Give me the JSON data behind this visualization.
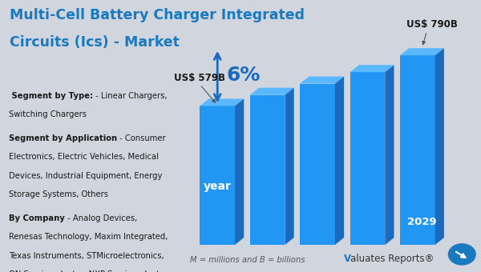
{
  "title_line1": "Multi-Cell Battery Charger Integrated",
  "title_line2": "Circuits (Ics) - Market",
  "title_color": "#1a7abf",
  "bg_color": "#d0d5de",
  "bar_values": [
    579,
    625,
    672,
    720,
    790
  ],
  "bar_color_front": "#2196F3",
  "bar_color_dark": "#1a6bbf",
  "bar_color_top": "#5bb8ff",
  "start_label": "US$ 579B",
  "end_label": "US$ 790B",
  "growth_label": "6%",
  "year_label": "year",
  "end_year": "2029",
  "footnote": "M = millions and B = billions",
  "brand_v": "V",
  "brand_text": "aluates Reports",
  "brand_symbol": "®",
  "arrow_color": "#1a6bbf",
  "left_segments": [
    {
      "bold": " Segment by Type:",
      "normal": " - Linear Chargers,\nSwitching Chargers"
    },
    {
      "bold": "Segment by Application",
      "normal": " - Consumer\nElectronics, Electric Vehicles, Medical\nDevices, Industrial Equipment, Energy\nStorage Systems, Others"
    },
    {
      "bold": "By Company",
      "normal": " - Analog Devices,\nRenesas Technology, Maxim Integrated,\nTexas Instruments, STMicroelectronics,\nON Semiconductor, NXP Semiconductors,\nInfineon Technologies, Toshiba, ROHM\n...."
    }
  ]
}
